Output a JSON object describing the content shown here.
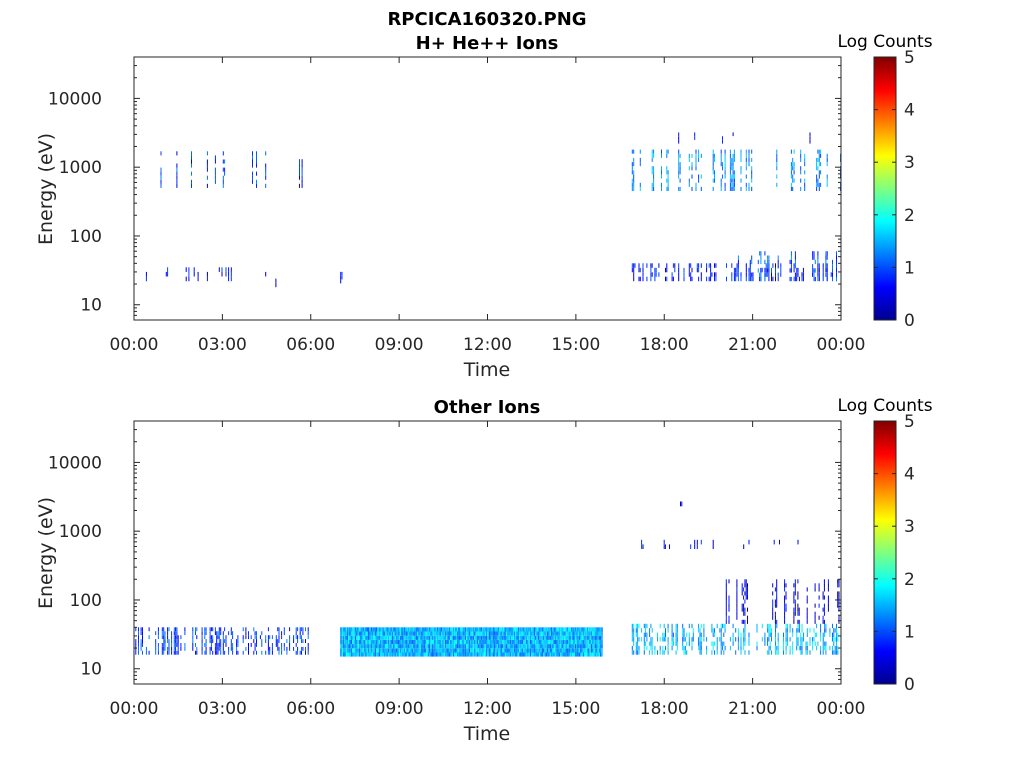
{
  "figure": {
    "title_line1": "RPCICA160320.PNG",
    "title_line2": "H+ He++ Ions"
  },
  "chart_data": [
    {
      "type": "heatmap",
      "title": "H+ He++ Ions",
      "xlabel": "Time",
      "ylabel": "Energy (eV)",
      "x_ticks": [
        "00:00",
        "03:00",
        "06:00",
        "09:00",
        "12:00",
        "15:00",
        "18:00",
        "21:00",
        "00:00"
      ],
      "xlim_hours": [
        0,
        24
      ],
      "y_scale": "log",
      "ylim": [
        6,
        40000
      ],
      "y_ticks": [
        10,
        100,
        1000,
        10000
      ],
      "y_tick_labels": [
        "10",
        "100",
        "1000",
        "10000"
      ],
      "colorbar": {
        "label": "Log Counts",
        "min": 0,
        "max": 5,
        "ticks": [
          "0",
          "1",
          "2",
          "3",
          "4",
          "5"
        ],
        "colormap": "jet"
      },
      "regions": [
        {
          "t_start": 0.0,
          "t_end": 4.6,
          "e_low": 500,
          "e_high": 1700,
          "log_counts": 0.9,
          "density": 0.12
        },
        {
          "t_start": 0.0,
          "t_end": 1.2,
          "e_low": 2500,
          "e_high": 3200,
          "log_counts": 0.6,
          "density": 0.03
        },
        {
          "t_start": 0.0,
          "t_end": 4.6,
          "e_low": 22,
          "e_high": 35,
          "log_counts": 0.6,
          "density": 0.1
        },
        {
          "t_start": 5.6,
          "t_end": 5.7,
          "e_low": 500,
          "e_high": 1500,
          "log_counts": 0.8,
          "density": 0.5
        },
        {
          "t_start": 4.8,
          "t_end": 4.9,
          "e_low": 18,
          "e_high": 24,
          "log_counts": 0.5,
          "density": 0.5
        },
        {
          "t_start": 7.0,
          "t_end": 7.1,
          "e_low": 18,
          "e_high": 30,
          "log_counts": 0.9,
          "density": 0.6
        },
        {
          "t_start": 16.9,
          "t_end": 24.0,
          "e_low": 450,
          "e_high": 1800,
          "log_counts": 1.3,
          "density": 0.22
        },
        {
          "t_start": 16.9,
          "t_end": 24.0,
          "e_low": 2200,
          "e_high": 3200,
          "log_counts": 0.6,
          "density": 0.06
        },
        {
          "t_start": 16.9,
          "t_end": 24.0,
          "e_low": 22,
          "e_high": 40,
          "log_counts": 0.7,
          "density": 0.35
        },
        {
          "t_start": 20.5,
          "t_end": 24.0,
          "e_low": 22,
          "e_high": 60,
          "log_counts": 1.0,
          "density": 0.3
        }
      ]
    },
    {
      "type": "heatmap",
      "title": "Other Ions",
      "xlabel": "Time",
      "ylabel": "Energy (eV)",
      "x_ticks": [
        "00:00",
        "03:00",
        "06:00",
        "09:00",
        "12:00",
        "15:00",
        "18:00",
        "21:00",
        "00:00"
      ],
      "xlim_hours": [
        0,
        24
      ],
      "y_scale": "log",
      "ylim": [
        6,
        40000
      ],
      "y_ticks": [
        10,
        100,
        1000,
        10000
      ],
      "y_tick_labels": [
        "10",
        "100",
        "1000",
        "10000"
      ],
      "colorbar": {
        "label": "Log Counts",
        "min": 0,
        "max": 5,
        "ticks": [
          "0",
          "1",
          "2",
          "3",
          "4",
          "5"
        ],
        "colormap": "jet"
      },
      "regions": [
        {
          "t_start": 0.0,
          "t_end": 5.9,
          "e_low": 16,
          "e_high": 40,
          "log_counts": 0.9,
          "density": 0.55
        },
        {
          "t_start": 7.0,
          "t_end": 15.9,
          "e_low": 15,
          "e_high": 40,
          "log_counts": 1.5,
          "density": 1.0
        },
        {
          "t_start": 16.9,
          "t_end": 24.0,
          "e_low": 16,
          "e_high": 45,
          "log_counts": 1.5,
          "density": 0.55
        },
        {
          "t_start": 20.0,
          "t_end": 24.0,
          "e_low": 45,
          "e_high": 200,
          "log_counts": 0.5,
          "density": 0.25
        },
        {
          "t_start": 16.9,
          "t_end": 24.0,
          "e_low": 550,
          "e_high": 750,
          "log_counts": 0.6,
          "density": 0.1
        },
        {
          "t_start": 18.4,
          "t_end": 18.7,
          "e_low": 2300,
          "e_high": 2700,
          "log_counts": 0.5,
          "density": 0.5
        }
      ]
    }
  ]
}
